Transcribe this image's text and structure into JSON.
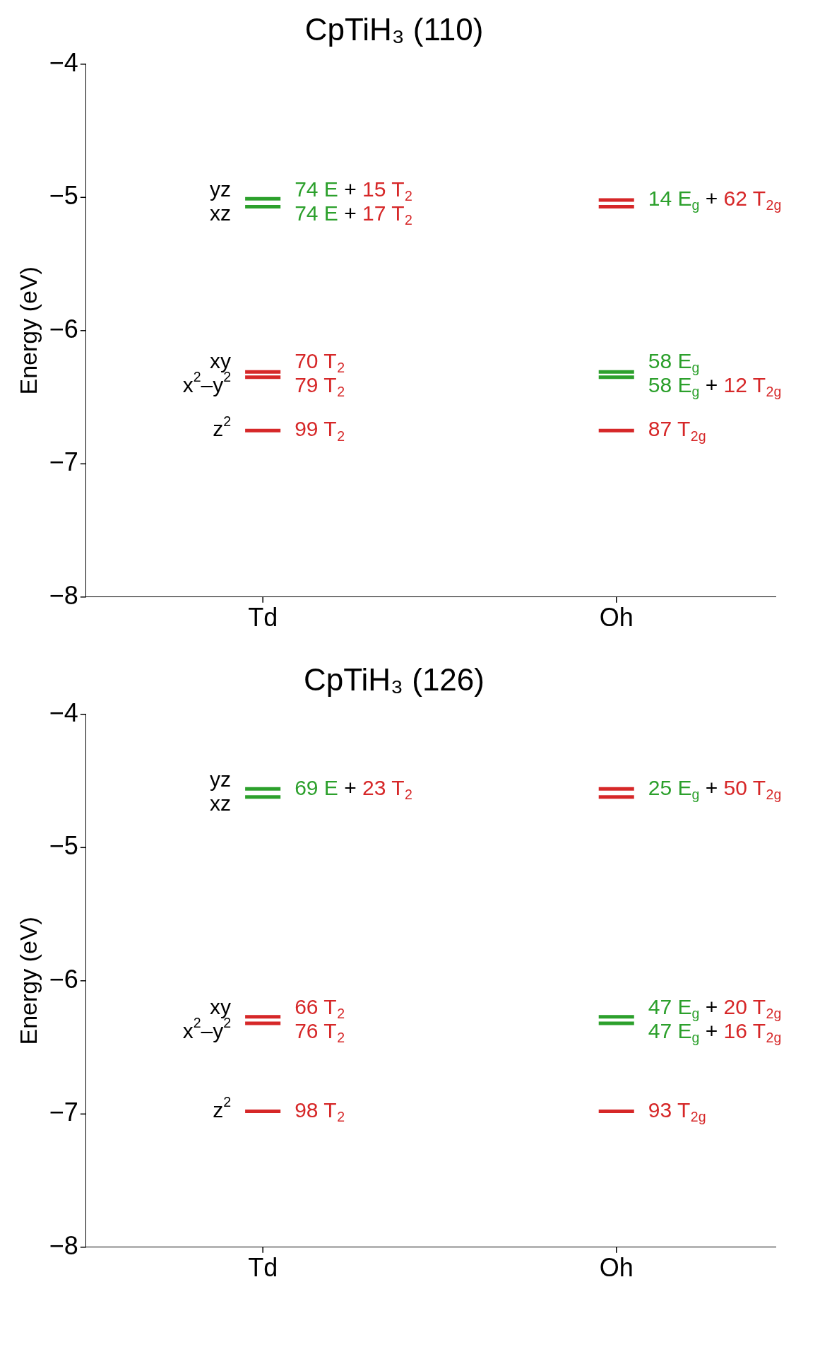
{
  "chart_data": [
    {
      "type": "line",
      "title": "CpTiH₃ (110)",
      "ylabel": "Energy (eV)",
      "categories": [
        null,
        null,
        null,
        null,
        null,
        null,
        null,
        null,
        null,
        null,
        "Td",
        null,
        null,
        null,
        null,
        null,
        null,
        null,
        null,
        null,
        null,
        null,
        null,
        null,
        null,
        null,
        null,
        null,
        null,
        null,
        "Oh",
        null,
        null,
        null,
        null,
        null,
        null,
        null,
        null,
        null
      ],
      "ylim": [
        -8,
        -4
      ],
      "yticks": [
        -8,
        -7,
        -6,
        -5,
        -4
      ],
      "grid": false,
      "legend": false,
      "marker": "none",
      "line_style": "solid",
      "series": [
        {
          "color": "#2ca02c",
          "values": [
            null,
            null,
            null,
            null,
            null,
            null,
            null,
            null,
            null,
            -5.01,
            -5.01,
            -5.01,
            null,
            null,
            null,
            null,
            null,
            null,
            null,
            null,
            null,
            null,
            null,
            null,
            null,
            null,
            null,
            null,
            null,
            null,
            null,
            null,
            null,
            null,
            null,
            null,
            null,
            null,
            null,
            null
          ]
        },
        {
          "color": "#2ca02c",
          "values": [
            null,
            null,
            null,
            null,
            null,
            null,
            null,
            null,
            null,
            -5.07,
            -5.07,
            -5.07,
            null,
            null,
            null,
            null,
            null,
            null,
            null,
            null,
            null,
            null,
            null,
            null,
            null,
            null,
            null,
            null,
            null,
            null,
            null,
            null,
            null,
            null,
            null,
            null,
            null,
            null,
            null,
            null
          ]
        },
        {
          "color": "#d62728",
          "values": [
            null,
            null,
            null,
            null,
            null,
            null,
            null,
            null,
            null,
            -6.31,
            -6.31,
            -6.31,
            null,
            null,
            null,
            null,
            null,
            null,
            null,
            null,
            null,
            null,
            null,
            null,
            null,
            null,
            null,
            null,
            null,
            null,
            null,
            null,
            null,
            null,
            null,
            null,
            null,
            null,
            null,
            null
          ]
        },
        {
          "color": "#d62728",
          "values": [
            null,
            null,
            null,
            null,
            null,
            null,
            null,
            null,
            null,
            -6.35,
            -6.35,
            -6.35,
            null,
            null,
            null,
            null,
            null,
            null,
            null,
            null,
            null,
            null,
            null,
            null,
            null,
            null,
            null,
            null,
            null,
            null,
            null,
            null,
            null,
            null,
            null,
            null,
            null,
            null,
            null,
            null
          ]
        },
        {
          "color": "#d62728",
          "values": [
            null,
            null,
            null,
            null,
            null,
            null,
            null,
            null,
            null,
            -6.75,
            -6.75,
            -6.75,
            null,
            null,
            null,
            null,
            null,
            null,
            null,
            null,
            null,
            null,
            null,
            null,
            null,
            null,
            null,
            null,
            null,
            null,
            null,
            null,
            null,
            null,
            null,
            null,
            null,
            null,
            null,
            null
          ]
        },
        {
          "color": "#d62728",
          "values": [
            null,
            null,
            null,
            null,
            null,
            null,
            null,
            null,
            null,
            null,
            null,
            null,
            null,
            null,
            null,
            null,
            null,
            null,
            null,
            null,
            null,
            null,
            null,
            null,
            null,
            null,
            null,
            null,
            null,
            -5.02,
            -5.02,
            -5.02,
            null,
            null,
            null,
            null,
            null,
            null,
            null,
            null
          ]
        },
        {
          "color": "#d62728",
          "values": [
            null,
            null,
            null,
            null,
            null,
            null,
            null,
            null,
            null,
            null,
            null,
            null,
            null,
            null,
            null,
            null,
            null,
            null,
            null,
            null,
            null,
            null,
            null,
            null,
            null,
            null,
            null,
            null,
            null,
            -5.07,
            -5.07,
            -5.07,
            null,
            null,
            null,
            null,
            null,
            null,
            null,
            null
          ]
        },
        {
          "color": "#2ca02c",
          "values": [
            null,
            null,
            null,
            null,
            null,
            null,
            null,
            null,
            null,
            null,
            null,
            null,
            null,
            null,
            null,
            null,
            null,
            null,
            null,
            null,
            null,
            null,
            null,
            null,
            null,
            null,
            null,
            null,
            null,
            -6.31,
            -6.31,
            -6.31,
            null,
            null,
            null,
            null,
            null,
            null,
            null,
            null
          ]
        },
        {
          "color": "#2ca02c",
          "values": [
            null,
            null,
            null,
            null,
            null,
            null,
            null,
            null,
            null,
            null,
            null,
            null,
            null,
            null,
            null,
            null,
            null,
            null,
            null,
            null,
            null,
            null,
            null,
            null,
            null,
            null,
            null,
            null,
            null,
            -6.35,
            -6.35,
            -6.35,
            null,
            null,
            null,
            null,
            null,
            null,
            null,
            null
          ]
        },
        {
          "color": "#d62728",
          "values": [
            null,
            null,
            null,
            null,
            null,
            null,
            null,
            null,
            null,
            null,
            null,
            null,
            null,
            null,
            null,
            null,
            null,
            null,
            null,
            null,
            null,
            null,
            null,
            null,
            null,
            null,
            null,
            null,
            null,
            -6.75,
            -6.75,
            -6.75,
            null,
            null,
            null,
            null,
            null,
            null,
            null,
            null
          ]
        }
      ],
      "annotations": [
        "yz",
        "xz",
        "xy",
        "x$^{2}$–y$^{2}$",
        "z$^{2}$",
        {
          "text": "74 E + 15 T$_{2}$",
          "x": "Td",
          "y": -5.01
        },
        {
          "text": "74 E + 17 T$_{2}$",
          "x": "Td",
          "y": -5.07
        },
        {
          "text": "70 T$_{2}$",
          "x": "Td",
          "y": -6.31
        },
        {
          "text": "79 T$_{2}$",
          "x": "Td",
          "y": -6.35
        },
        {
          "text": "99 T$_{2}$",
          "x": "Td",
          "y": -6.75
        },
        {
          "text": "14 E$_{g}$ + 62 T$_{2g}$",
          "x": "Oh",
          "y": -5.02
        },
        {
          "text": "58 E$_{g}$",
          "x": "Oh",
          "y": -6.31
        },
        {
          "text": "58 E$_{g}$ + 12 T$_{2g}$",
          "x": "Oh",
          "y": -6.35
        },
        {
          "text": "87 T$_{2g}$",
          "x": "Oh",
          "y": -6.75
        }
      ]
    },
    {
      "type": "line",
      "title": "CpTiH₃ (126)",
      "ylabel": "Energy (eV)",
      "categories": [
        null,
        null,
        null,
        null,
        null,
        null,
        null,
        null,
        null,
        null,
        "Td",
        null,
        null,
        null,
        null,
        null,
        null,
        null,
        null,
        null,
        null,
        null,
        null,
        null,
        null,
        null,
        null,
        null,
        null,
        null,
        "Oh",
        null,
        null,
        null,
        null,
        null,
        null,
        null,
        null,
        null
      ],
      "ylim": [
        -8,
        -4
      ],
      "yticks": [
        -8,
        -7,
        -6,
        -5,
        -4
      ],
      "grid": false,
      "legend": false,
      "marker": "none",
      "line_style": "solid",
      "series": [
        {
          "color": "#2ca02c",
          "values": [
            null,
            null,
            null,
            null,
            null,
            null,
            null,
            null,
            null,
            -4.56,
            -4.56,
            -4.56,
            null,
            null,
            null,
            null,
            null,
            null,
            null,
            null,
            null,
            null,
            null,
            null,
            null,
            null,
            null,
            null,
            null,
            null,
            null,
            null,
            null,
            null,
            null,
            null,
            null,
            null,
            null,
            null
          ]
        },
        {
          "color": "#2ca02c",
          "values": [
            null,
            null,
            null,
            null,
            null,
            null,
            null,
            null,
            null,
            -4.62,
            -4.62,
            -4.62,
            null,
            null,
            null,
            null,
            null,
            null,
            null,
            null,
            null,
            null,
            null,
            null,
            null,
            null,
            null,
            null,
            null,
            null,
            null,
            null,
            null,
            null,
            null,
            null,
            null,
            null,
            null,
            null
          ]
        },
        {
          "color": "#d62728",
          "values": [
            null,
            null,
            null,
            null,
            null,
            null,
            null,
            null,
            null,
            -6.27,
            -6.27,
            -6.27,
            null,
            null,
            null,
            null,
            null,
            null,
            null,
            null,
            null,
            null,
            null,
            null,
            null,
            null,
            null,
            null,
            null,
            null,
            null,
            null,
            null,
            null,
            null,
            null,
            null,
            null,
            null,
            null
          ]
        },
        {
          "color": "#d62728",
          "values": [
            null,
            null,
            null,
            null,
            null,
            null,
            null,
            null,
            null,
            -6.32,
            -6.32,
            -6.32,
            null,
            null,
            null,
            null,
            null,
            null,
            null,
            null,
            null,
            null,
            null,
            null,
            null,
            null,
            null,
            null,
            null,
            null,
            null,
            null,
            null,
            null,
            null,
            null,
            null,
            null,
            null,
            null
          ]
        },
        {
          "color": "#d62728",
          "values": [
            null,
            null,
            null,
            null,
            null,
            null,
            null,
            null,
            null,
            -6.98,
            -6.98,
            -6.98,
            null,
            null,
            null,
            null,
            null,
            null,
            null,
            null,
            null,
            null,
            null,
            null,
            null,
            null,
            null,
            null,
            null,
            null,
            null,
            null,
            null,
            null,
            null,
            null,
            null,
            null,
            null,
            null
          ]
        },
        {
          "color": "#d62728",
          "values": [
            null,
            null,
            null,
            null,
            null,
            null,
            null,
            null,
            null,
            null,
            null,
            null,
            null,
            null,
            null,
            null,
            null,
            null,
            null,
            null,
            null,
            null,
            null,
            null,
            null,
            null,
            null,
            null,
            null,
            -4.56,
            -4.56,
            -4.56,
            null,
            null,
            null,
            null,
            null,
            null,
            null,
            null
          ]
        },
        {
          "color": "#d62728",
          "values": [
            null,
            null,
            null,
            null,
            null,
            null,
            null,
            null,
            null,
            null,
            null,
            null,
            null,
            null,
            null,
            null,
            null,
            null,
            null,
            null,
            null,
            null,
            null,
            null,
            null,
            null,
            null,
            null,
            null,
            -4.62,
            -4.62,
            -4.62,
            null,
            null,
            null,
            null,
            null,
            null,
            null,
            null
          ]
        },
        {
          "color": "#2ca02c",
          "values": [
            null,
            null,
            null,
            null,
            null,
            null,
            null,
            null,
            null,
            null,
            null,
            null,
            null,
            null,
            null,
            null,
            null,
            null,
            null,
            null,
            null,
            null,
            null,
            null,
            null,
            null,
            null,
            null,
            null,
            -6.27,
            -6.27,
            -6.27,
            null,
            null,
            null,
            null,
            null,
            null,
            null,
            null
          ]
        },
        {
          "color": "#2ca02c",
          "values": [
            null,
            null,
            null,
            null,
            null,
            null,
            null,
            null,
            null,
            null,
            null,
            null,
            null,
            null,
            null,
            null,
            null,
            null,
            null,
            null,
            null,
            null,
            null,
            null,
            null,
            null,
            null,
            null,
            null,
            -6.32,
            -6.32,
            -6.32,
            null,
            null,
            null,
            null,
            null,
            null,
            null,
            null
          ]
        },
        {
          "color": "#d62728",
          "values": [
            null,
            null,
            null,
            null,
            null,
            null,
            null,
            null,
            null,
            null,
            null,
            null,
            null,
            null,
            null,
            null,
            null,
            null,
            null,
            null,
            null,
            null,
            null,
            null,
            null,
            null,
            null,
            null,
            null,
            -6.98,
            -6.98,
            -6.98,
            null,
            null,
            null,
            null,
            null,
            null,
            null,
            null
          ]
        }
      ],
      "annotations": [
        "yz",
        "xz",
        "xy",
        "x$^{2}$–y$^{2}$",
        "z$^{2}$",
        {
          "text": "69 E + 23 T$_{2}$",
          "x": "Td",
          "y": -4.56
        },
        {
          "text": "66 T$_{2}$",
          "x": "Td",
          "y": -6.27
        },
        {
          "text": "76 T$_{2}$",
          "x": "Td",
          "y": -6.32
        },
        {
          "text": "98 T$_{2}$",
          "x": "Td",
          "y": -6.98
        },
        {
          "text": "25 E$_{g}$ + 50 T$_{2g}$",
          "x": "Oh",
          "y": -4.56
        },
        {
          "text": "47 E$_{g}$ + 20 T$_{2g}$",
          "x": "Oh",
          "y": -6.27
        },
        {
          "text": "47 E$_{g}$ + 16 T$_{2g}$",
          "x": "Oh",
          "y": -6.32
        },
        {
          "text": "93 T$_{2g}$",
          "x": "Oh",
          "y": -6.98
        }
      ]
    }
  ]
}
